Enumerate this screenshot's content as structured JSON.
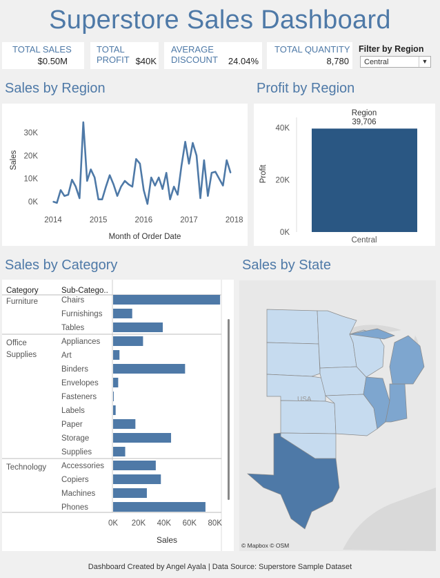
{
  "header": {
    "title": "Superstore Sales Dashboard"
  },
  "kpis": [
    {
      "label": "TOTAL SALES",
      "value": "$0.50M"
    },
    {
      "label": "TOTAL PROFIT",
      "value": "$40K"
    },
    {
      "label": "AVERAGE DISCOUNT",
      "value": "24.04%"
    },
    {
      "label": "TOTAL QUANTITY",
      "value": "8,780"
    }
  ],
  "filter": {
    "label": "Filter by Region",
    "selected": "Central"
  },
  "sections": {
    "sales_by_region": "Sales by Region",
    "profit_by_region": "Profit by Region",
    "sales_by_category": "Sales by Category",
    "sales_by_state": "Sales by State"
  },
  "footer": "Dashboard Created by Angel Ayala | Data Source: Superstore Sample  Dataset",
  "map": {
    "attribution": "© Mapbox © OSM",
    "country_label": "USA",
    "fill_light": "#c6dbef",
    "fill_mid": "#7ea6cf",
    "fill_dark": "#4e79a7"
  },
  "colors": {
    "accent": "#4e79a7",
    "bar_dark": "#2a5783"
  },
  "chart_data": [
    {
      "id": "sales_by_region",
      "type": "line",
      "xlabel": "Month of Order Date",
      "ylabel": "Sales",
      "x_ticks": [
        "2014",
        "2015",
        "2016",
        "2017",
        "2018"
      ],
      "y_ticks": [
        "0K",
        "10K",
        "20K",
        "30K"
      ],
      "ylim": [
        0,
        36000
      ],
      "xlim": [
        2014,
        2018.05
      ],
      "grid": false,
      "series": [
        {
          "x": [
            2014.0,
            2014.083,
            2014.167,
            2014.25,
            2014.333,
            2014.417,
            2014.5,
            2014.583,
            2014.667,
            2014.75,
            2014.833,
            2014.917,
            2015.0,
            2015.083,
            2015.167,
            2015.25,
            2015.333,
            2015.417,
            2015.5,
            2015.583,
            2015.667,
            2015.75,
            2015.833,
            2015.917,
            2016.0,
            2016.083,
            2016.167,
            2016.25,
            2016.333,
            2016.417,
            2016.5,
            2016.583,
            2016.667,
            2016.75,
            2016.833,
            2016.917,
            2017.0,
            2017.083,
            2017.167,
            2017.25,
            2017.333,
            2017.417,
            2017.5,
            2017.583,
            2017.667,
            2017.75,
            2017.833,
            2017.917
          ],
          "y": [
            0,
            -500,
            5000,
            2500,
            3000,
            9500,
            6500,
            1500,
            34500,
            9000,
            14000,
            10500,
            1000,
            1000,
            6500,
            11500,
            7500,
            2500,
            6500,
            9000,
            7500,
            6500,
            18500,
            16500,
            5000,
            -1000,
            10500,
            7000,
            10500,
            5500,
            12500,
            1000,
            6500,
            3000,
            15500,
            26000,
            16500,
            25500,
            20000,
            1500,
            18000,
            2500,
            12500,
            13000,
            10000,
            7000,
            18000,
            12500
          ]
        }
      ]
    },
    {
      "id": "profit_by_region",
      "type": "bar",
      "title": "Region",
      "categories": [
        "Central"
      ],
      "values": [
        39706
      ],
      "data_labels": [
        "39,706"
      ],
      "ylabel": "Profit",
      "y_ticks": [
        "0K",
        "20K",
        "40K"
      ],
      "ylim": [
        0,
        44000
      ]
    },
    {
      "id": "sales_by_category",
      "type": "bar",
      "orientation": "horizontal",
      "column_headers": [
        "Category",
        "Sub-Catego.."
      ],
      "groups": [
        {
          "category": "Furniture",
          "subcategories": [
            "Chairs",
            "Furnishings",
            "Tables"
          ],
          "values": [
            84000,
            15000,
            39000
          ]
        },
        {
          "category": "Office Supplies",
          "subcategories": [
            "Appliances",
            "Art",
            "Binders",
            "Envelopes",
            "Fasteners",
            "Labels",
            "Paper",
            "Storage",
            "Supplies"
          ],
          "values": [
            23500,
            5000,
            56500,
            4000,
            500,
            2000,
            17500,
            45500,
            9500
          ]
        },
        {
          "category": "Technology",
          "subcategories": [
            "Accessories",
            "Copiers",
            "Machines",
            "Phones"
          ],
          "values": [
            33500,
            37500,
            26500,
            72500
          ]
        }
      ],
      "xlabel": "Sales",
      "x_ticks": [
        "0K",
        "20K",
        "40K",
        "60K",
        "80K"
      ],
      "xlim": [
        0,
        85000
      ]
    }
  ]
}
